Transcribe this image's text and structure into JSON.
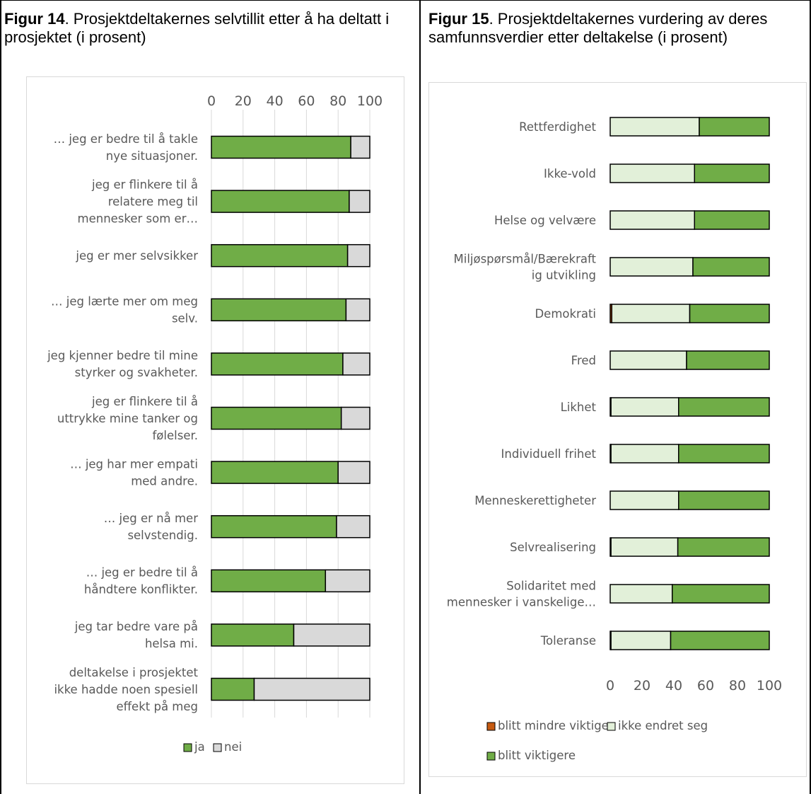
{
  "figures": [
    {
      "label": "Figur 14",
      "caption": ". Prosjektdeltakernes selvtillit etter å ha deltatt i prosjektet (i prosent)"
    },
    {
      "label": "Figur 15",
      "caption": ". Prosjektdeltakernes vurdering av deres samfunnsverdier etter deltakelse (i prosent)"
    }
  ],
  "chart_data": [
    {
      "type": "bar",
      "orientation": "horizontal",
      "stacked": true,
      "title": "",
      "xlim": [
        0,
        100
      ],
      "xticks": [
        "0",
        "20",
        "40",
        "60",
        "80",
        "100"
      ],
      "axis_position": "top",
      "grid": true,
      "legend_position": "bottom",
      "categories": [
        [
          "… jeg er bedre til å takle",
          "nye situasjoner."
        ],
        [
          "jeg er flinkere til å",
          "relatere meg til",
          "mennesker som er…"
        ],
        [
          "jeg er mer selvsikker"
        ],
        [
          "… jeg lærte mer om meg",
          "selv."
        ],
        [
          "jeg kjenner bedre til mine",
          "styrker og svakheter."
        ],
        [
          "jeg er flinkere til å",
          "uttrykke mine tanker og",
          "følelser."
        ],
        [
          "… jeg har mer empati",
          "med andre."
        ],
        [
          "… jeg er nå mer",
          "selvstendig."
        ],
        [
          "… jeg er bedre til å",
          "håndtere konflikter."
        ],
        [
          "jeg tar bedre vare på",
          "helsa mi."
        ],
        [
          "deltakelse i prosjektet",
          "ikke hadde noen spesiell",
          "effekt på meg"
        ]
      ],
      "series": [
        {
          "name": "ja",
          "color": "#70ad47",
          "values": [
            88,
            87,
            86,
            85,
            83,
            82,
            80,
            79,
            72,
            52,
            27
          ]
        },
        {
          "name": "nei",
          "color": "#d9d9d9",
          "values": [
            12,
            13,
            14,
            15,
            17,
            18,
            20,
            21,
            28,
            48,
            73
          ]
        }
      ]
    },
    {
      "type": "bar",
      "orientation": "horizontal",
      "stacked": true,
      "title": "",
      "xlim": [
        0,
        100
      ],
      "xticks": [
        "0",
        "20",
        "40",
        "60",
        "80",
        "100"
      ],
      "axis_position": "bottom",
      "grid": false,
      "legend_position": "bottom",
      "categories": [
        [
          "Rettferdighet"
        ],
        [
          "Ikke-vold"
        ],
        [
          "Helse og velvære"
        ],
        [
          "Miljøspørsmål/Bærekraft",
          "ig utvikling"
        ],
        [
          "Demokrati"
        ],
        [
          "Fred"
        ],
        [
          "Likhet"
        ],
        [
          "Individuell frihet"
        ],
        [
          "Menneskerettigheter"
        ],
        [
          "Selvrealisering"
        ],
        [
          "Solidaritet med",
          "mennesker i vanskelige…"
        ],
        [
          "Toleranse"
        ]
      ],
      "series": [
        {
          "name": "blitt mindre viktige",
          "color": "#c55a11",
          "values": [
            0,
            0,
            0,
            0,
            1,
            0,
            0.5,
            0.5,
            0,
            0.5,
            0,
            0.5
          ]
        },
        {
          "name": "ikke endret seg",
          "color": "#e2f0d9",
          "values": [
            56,
            53,
            53,
            52,
            49,
            48,
            42.5,
            42.5,
            43,
            42,
            39,
            37.5
          ]
        },
        {
          "name": "blitt viktigere",
          "color": "#70ad47",
          "values": [
            44,
            47,
            47,
            48,
            50,
            52,
            57,
            57,
            57,
            57.5,
            61,
            62
          ]
        }
      ]
    }
  ]
}
